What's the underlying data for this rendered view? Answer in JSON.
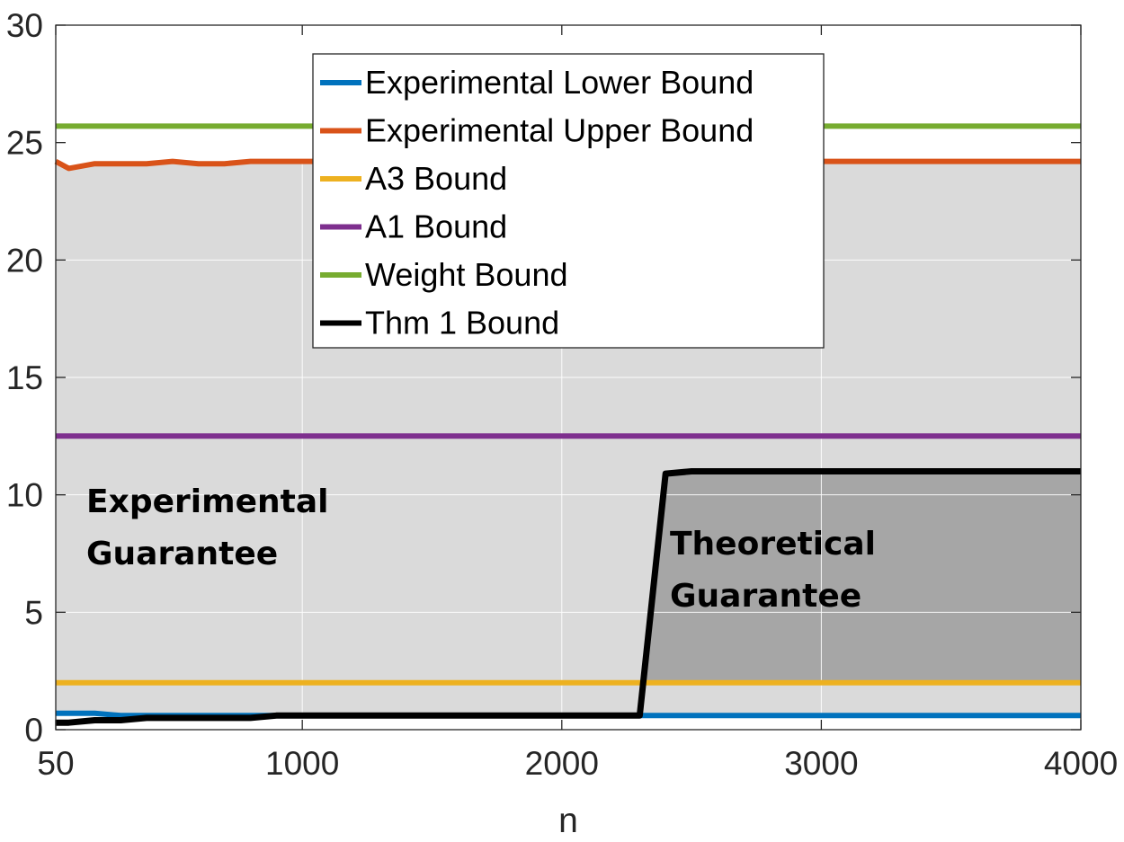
{
  "chart_data": {
    "type": "line",
    "title": "",
    "xlabel": "n",
    "ylabel": "",
    "xlim": [
      50,
      4000
    ],
    "ylim": [
      0,
      30
    ],
    "x_ticks": [
      50,
      1000,
      2000,
      3000,
      4000
    ],
    "y_ticks": [
      0,
      5,
      10,
      15,
      20,
      25,
      30
    ],
    "grid": true,
    "legend_position": "top-center",
    "series": [
      {
        "name": "Experimental Lower Bound",
        "color": "#0072BD",
        "x": [
          50,
          100,
          200,
          300,
          400,
          500,
          600,
          700,
          800,
          900,
          1000,
          1500,
          2000,
          2500,
          3000,
          3500,
          4000
        ],
        "y": [
          0.7,
          0.7,
          0.7,
          0.6,
          0.6,
          0.6,
          0.6,
          0.6,
          0.6,
          0.6,
          0.6,
          0.6,
          0.6,
          0.6,
          0.6,
          0.6,
          0.6
        ]
      },
      {
        "name": "Experimental Upper Bound",
        "color": "#D95319",
        "x": [
          50,
          100,
          200,
          300,
          400,
          500,
          600,
          700,
          800,
          900,
          1000,
          1500,
          2000,
          2500,
          3000,
          3500,
          4000
        ],
        "y": [
          24.2,
          23.9,
          24.1,
          24.1,
          24.1,
          24.2,
          24.1,
          24.1,
          24.2,
          24.2,
          24.2,
          24.2,
          24.2,
          24.2,
          24.2,
          24.2,
          24.2
        ]
      },
      {
        "name": "A3 Bound",
        "color": "#EDB120",
        "x": [
          50,
          4000
        ],
        "y": [
          2.0,
          2.0
        ]
      },
      {
        "name": "A1 Bound",
        "color": "#7E2F8E",
        "x": [
          50,
          4000
        ],
        "y": [
          12.5,
          12.5
        ]
      },
      {
        "name": "Weight Bound",
        "color": "#77AC30",
        "x": [
          50,
          4000
        ],
        "y": [
          25.7,
          25.7
        ]
      },
      {
        "name": "Thm 1 Bound",
        "color": "#000000",
        "x": [
          50,
          100,
          200,
          300,
          400,
          500,
          600,
          700,
          800,
          900,
          1000,
          1500,
          2000,
          2300,
          2400,
          2500,
          3000,
          3500,
          4000
        ],
        "y": [
          0.3,
          0.3,
          0.4,
          0.4,
          0.5,
          0.5,
          0.5,
          0.5,
          0.5,
          0.6,
          0.6,
          0.6,
          0.6,
          0.6,
          10.9,
          11.0,
          11.0,
          11.0,
          11.0
        ]
      }
    ],
    "annotations": [
      {
        "lines": [
          "Experimental",
          "Guarantee"
        ]
      },
      {
        "lines": [
          "Theoretical",
          "Guarantee"
        ]
      }
    ],
    "fills": {
      "experimental_color": "#DADADA",
      "theoretical_color": "#A6A6A6"
    }
  }
}
